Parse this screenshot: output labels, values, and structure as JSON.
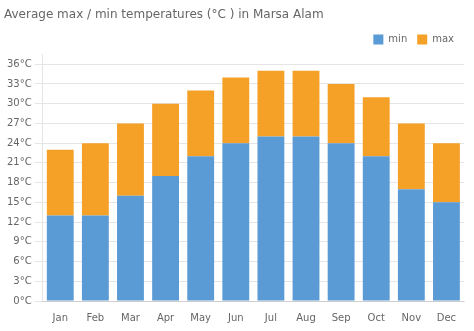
{
  "chart_data": {
    "type": "bar",
    "title": "Average max / min temperatures (°C ) in Marsa Alam",
    "categories": [
      "Jan",
      "Feb",
      "Mar",
      "Apr",
      "May",
      "Jun",
      "Jul",
      "Aug",
      "Sep",
      "Oct",
      "Nov",
      "Dec"
    ],
    "series": [
      {
        "name": "min",
        "color": "#5b9bd5",
        "values": [
          13,
          13,
          16,
          19,
          22,
          24,
          25,
          25,
          24,
          22,
          17,
          15
        ]
      },
      {
        "name": "max",
        "color": "#f5a027",
        "values": [
          10,
          11,
          11,
          11,
          10,
          10,
          10,
          10,
          9,
          9,
          10,
          9
        ]
      }
    ],
    "stacked": true,
    "ylim": [
      0,
      37.5
    ],
    "yticks": [
      {
        "value": 0,
        "label": "0°C"
      },
      {
        "value": 3,
        "label": "3°C"
      },
      {
        "value": 6,
        "label": "6°C"
      },
      {
        "value": 9,
        "label": "9°C"
      },
      {
        "value": 12,
        "label": "12°C"
      },
      {
        "value": 15,
        "label": "15°C"
      },
      {
        "value": 18,
        "label": "18°C"
      },
      {
        "value": 21,
        "label": "21°C"
      },
      {
        "value": 24,
        "label": "24°C"
      },
      {
        "value": 27,
        "label": "27°C"
      },
      {
        "value": 30,
        "label": "30°C"
      },
      {
        "value": 33,
        "label": "33°C"
      },
      {
        "value": 36,
        "label": "36°C"
      }
    ],
    "grid": true,
    "legend": "upper right"
  }
}
